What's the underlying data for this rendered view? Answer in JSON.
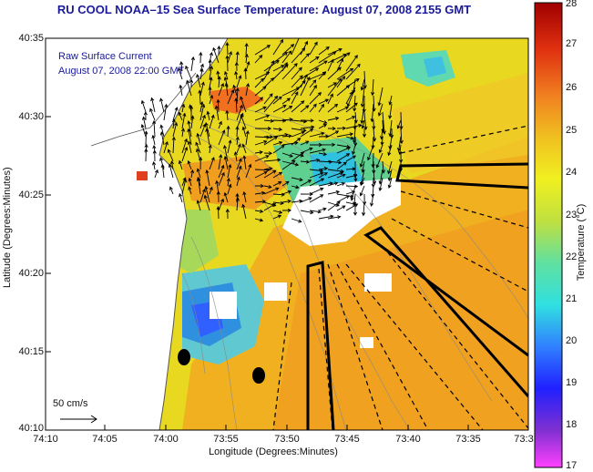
{
  "title": "RU COOL  NOAA–15  Sea Surface Temperature:  August 07, 2008 2155 GMT",
  "legend": {
    "line1": "Raw Surface Current",
    "line2": "August 07, 2008 22:00 GMT"
  },
  "scale_label": "50 cm/s",
  "axes": {
    "xlabel": "Longitude (Degrees:Minutes)",
    "ylabel": "Latitude (Degrees:Minutes)",
    "xticks": [
      "74:10",
      "74:05",
      "74:00",
      "73:55",
      "73:50",
      "73:45",
      "73:40",
      "73:35",
      "73:3"
    ],
    "yticks": [
      "40:35",
      "40:30",
      "40:25",
      "40:20",
      "40:15",
      "40:10"
    ]
  },
  "colorbar": {
    "label": "Temperature (°C)",
    "min": 17,
    "max": 28,
    "ticks": [
      "28",
      "27",
      "26",
      "25",
      "24",
      "23",
      "22",
      "21",
      "20",
      "19",
      "18",
      "17"
    ]
  },
  "colors": {
    "title": "#1a1a9a",
    "land": "#ffffff",
    "warm": "#f0a020",
    "hot": "#e04020",
    "mid": "#e8e020",
    "cool": "#40d0e0",
    "cold": "#4080ff"
  }
}
